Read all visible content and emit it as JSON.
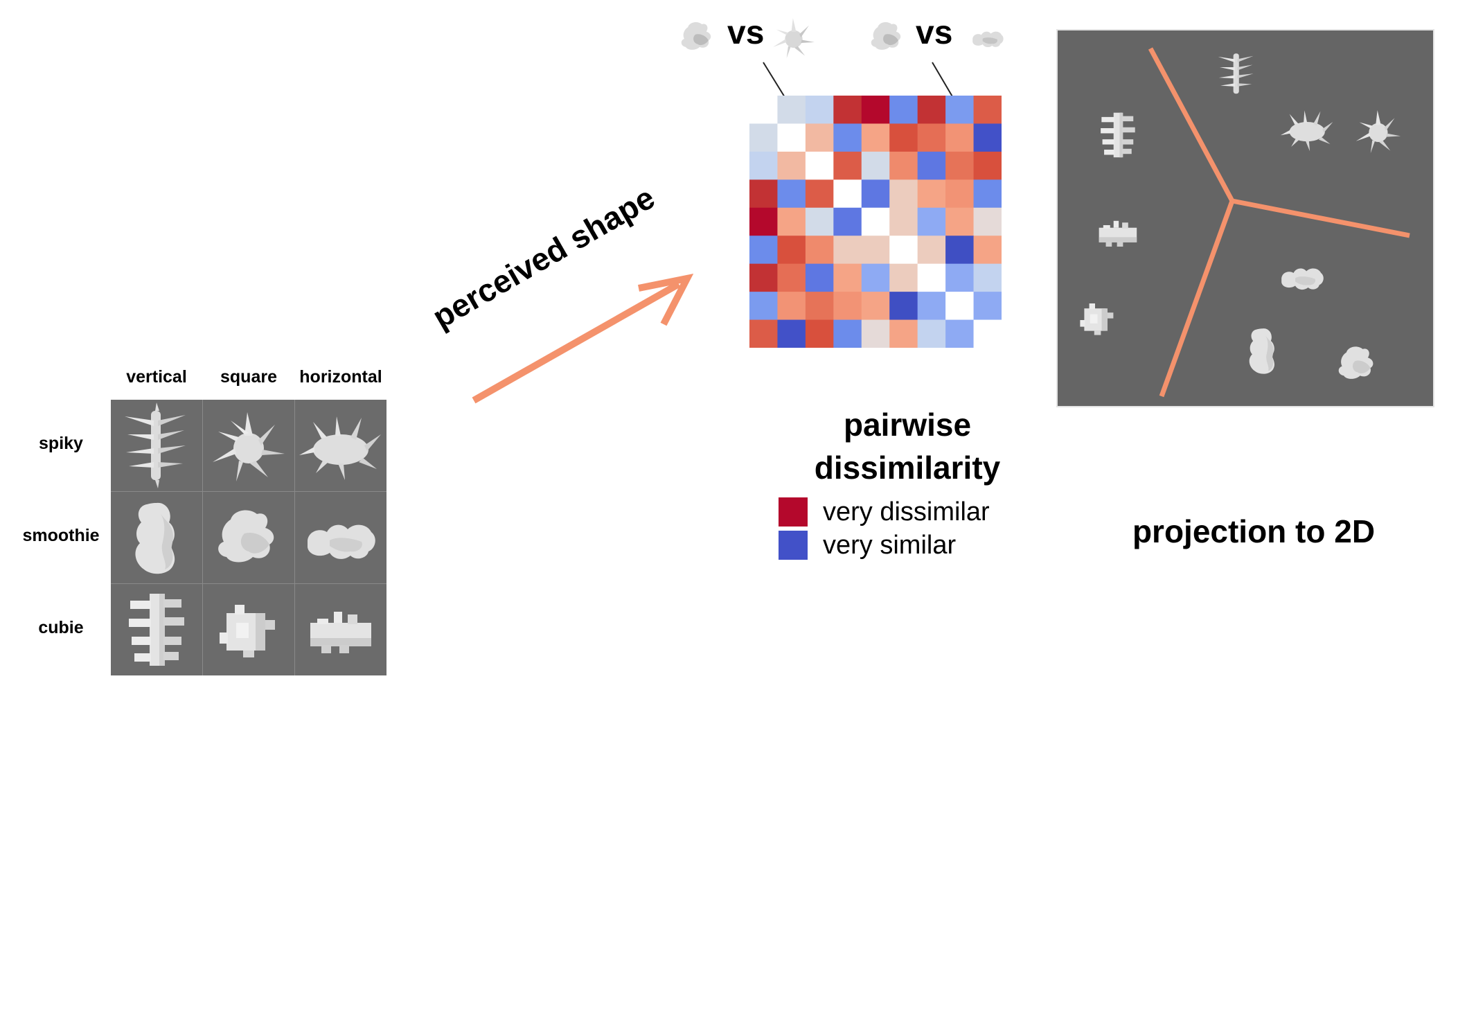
{
  "grid": {
    "columns": [
      "vertical",
      "square",
      "horizontal"
    ],
    "rows": [
      "spiky",
      "smoothie",
      "cubie"
    ]
  },
  "arrow": {
    "label": "perceived shape",
    "color": "#f4926c"
  },
  "comparisons": [
    {
      "label": "vs",
      "left_icon": "smoothie-square-icon",
      "right_icon": "spiky-square-icon"
    },
    {
      "label": "vs",
      "left_icon": "smoothie-square-icon",
      "right_icon": "smoothie-horizontal-icon"
    }
  ],
  "heatmap": {
    "title": "pairwise dissimilarity",
    "matrix_colors": [
      [
        "#ffffff",
        "#d2dbe8",
        "#c3d3ef",
        "#c23234",
        "#b4082c",
        "#6c8ceb",
        "#c23234",
        "#7b9bef",
        "#dc5c48"
      ],
      [
        "#d2dbe8",
        "#ffffff",
        "#f2b9a2",
        "#6c8ceb",
        "#f5a486",
        "#d8503d",
        "#e56e55",
        "#f29375",
        "#4251c8"
      ],
      [
        "#c3d3ef",
        "#f2b9a2",
        "#ffffff",
        "#dc5c48",
        "#d2dbe8",
        "#ef8a6c",
        "#5e77e2",
        "#e67358",
        "#d8503d"
      ],
      [
        "#c23234",
        "#6c8ceb",
        "#dc5c48",
        "#ffffff",
        "#5e77e2",
        "#ecccbe",
        "#f5a486",
        "#f29375",
        "#6c8ceb"
      ],
      [
        "#b4082c",
        "#f5a486",
        "#d2dbe8",
        "#5e77e2",
        "#ffffff",
        "#ecccbe",
        "#8eaaf3",
        "#f5a486",
        "#e5dad8"
      ],
      [
        "#6c8ceb",
        "#d8503d",
        "#ef8a6c",
        "#ecccbe",
        "#ecccbe",
        "#ffffff",
        "#ecccbe",
        "#3f4fc3",
        "#f5a486"
      ],
      [
        "#c23234",
        "#e56e55",
        "#5e77e2",
        "#f5a486",
        "#8eaaf3",
        "#ecccbe",
        "#ffffff",
        "#8eaaf3",
        "#c3d3ef"
      ],
      [
        "#7b9bef",
        "#f29375",
        "#e67358",
        "#f29375",
        "#f5a486",
        "#3f4fc3",
        "#8eaaf3",
        "#ffffff",
        "#8eaaf3"
      ],
      [
        "#dc5c48",
        "#4251c8",
        "#d8503d",
        "#6c8ceb",
        "#e5dad8",
        "#f5a486",
        "#c3d3ef",
        "#8eaaf3",
        "#ffffff"
      ]
    ],
    "legend": [
      {
        "label": "very dissimilar",
        "color": "#b4082c"
      },
      {
        "label": "very similar",
        "color": "#4251c8"
      }
    ]
  },
  "projection": {
    "title": "projection to 2D",
    "line_color": "#f4926c",
    "items": [
      "spiky-vertical",
      "cubie-vertical",
      "spiky-horizontal",
      "spiky-square",
      "cubie-horizontal",
      "smoothie-horizontal",
      "cubie-square",
      "smoothie-vertical",
      "smoothie-square"
    ]
  }
}
